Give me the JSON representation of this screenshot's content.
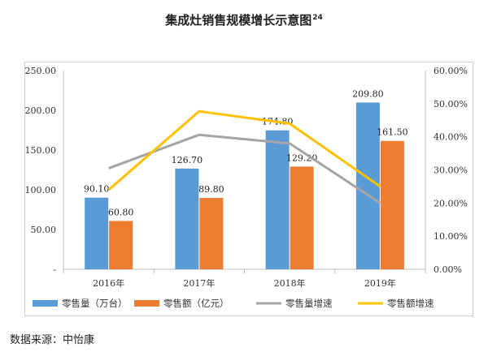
{
  "chart_data": {
    "type": "bar",
    "title": "集成灶销售规模增长示意图",
    "title_superscript": "24",
    "categories": [
      "2016年",
      "2017年",
      "2018年",
      "2019年"
    ],
    "series": [
      {
        "name": "零售量（万台）",
        "kind": "bar",
        "axis": "left",
        "color": "#5b9bd5",
        "values": [
          90.1,
          126.7,
          174.8,
          209.8
        ],
        "labels": [
          "90.10",
          "126.70",
          "174.80",
          "209.80"
        ]
      },
      {
        "name": "零售额（亿元）",
        "kind": "bar",
        "axis": "left",
        "color": "#ed7d31",
        "values": [
          60.8,
          89.8,
          129.2,
          161.5
        ],
        "labels": [
          "60.80",
          "89.80",
          "129.20",
          "161.50"
        ]
      },
      {
        "name": "零售量增速",
        "kind": "line",
        "axis": "right",
        "color": "#a5a5a5",
        "values": [
          0.305,
          0.406,
          0.38,
          0.2
        ]
      },
      {
        "name": "零售额增速",
        "kind": "line",
        "axis": "right",
        "color": "#ffc000",
        "values": [
          0.24,
          0.477,
          0.44,
          0.25
        ]
      }
    ],
    "y_left": {
      "min": 0,
      "max": 250,
      "ticks": [
        "-",
        "50.00",
        "100.00",
        "150.00",
        "200.00",
        "250.00"
      ]
    },
    "y_right": {
      "min": 0,
      "max": 0.6,
      "ticks": [
        "0.00%",
        "10.00%",
        "20.00%",
        "30.00%",
        "40.00%",
        "50.00%",
        "60.00%"
      ]
    },
    "legend_position": "bottom",
    "grid": false
  },
  "source": "数据来源：中怡康"
}
